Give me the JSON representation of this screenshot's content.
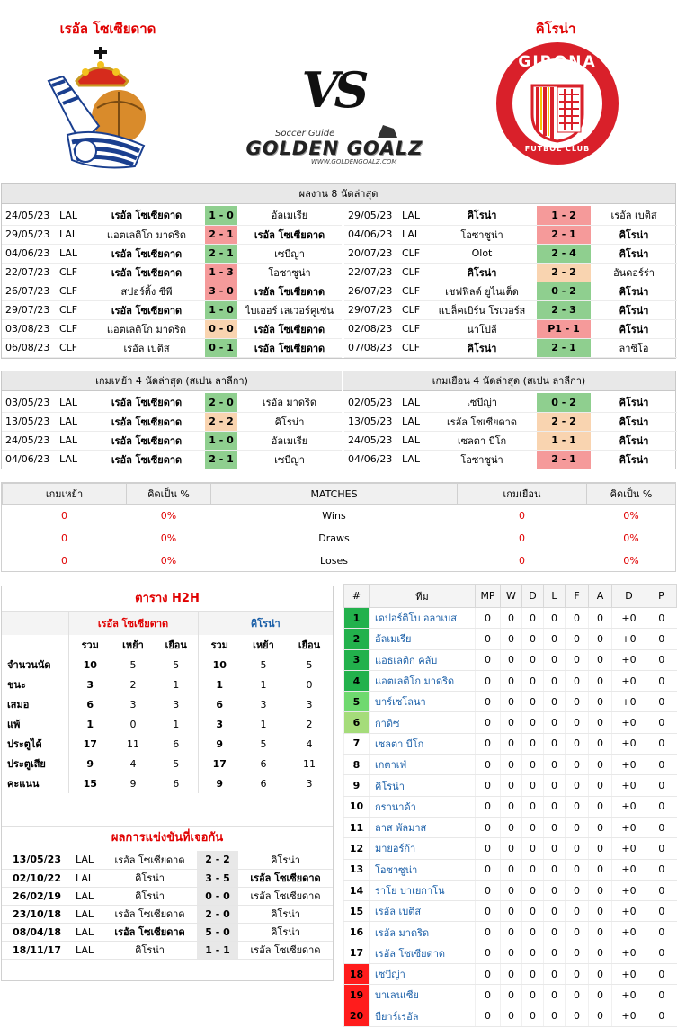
{
  "header": {
    "home_name": "เรอัล โซเซียดาด",
    "away_name": "คิโรน่า",
    "vs": "VS",
    "brand_small": "Soccer Guide",
    "brand_big": "GOLDEN GOALZ",
    "brand_url": "WWW.GOLDENGOALZ.COM",
    "away_logo_top": "GIRONA",
    "away_logo_bottom": "FUTBOL CLUB"
  },
  "recent": {
    "title": "ผลงาน 8 นัดล่าสุด",
    "home": [
      {
        "date": "24/05/23",
        "lg": "LAL",
        "h": "เรอัล โซเซียดาด",
        "hb": true,
        "s": "1 - 0",
        "r": "win",
        "a": "อัลเมเรีย",
        "ab": false
      },
      {
        "date": "29/05/23",
        "lg": "LAL",
        "h": "แอตเลติโก มาดริด",
        "hb": false,
        "s": "2 - 1",
        "r": "loss",
        "a": "เรอัล โซเซียดาด",
        "ab": true
      },
      {
        "date": "04/06/23",
        "lg": "LAL",
        "h": "เรอัล โซเซียดาด",
        "hb": true,
        "s": "2 - 1",
        "r": "win",
        "a": "เซบีญ่า",
        "ab": false
      },
      {
        "date": "22/07/23",
        "lg": "CLF",
        "h": "เรอัล โซเซียดาด",
        "hb": true,
        "s": "1 - 3",
        "r": "loss",
        "a": "โอซาซูน่า",
        "ab": false
      },
      {
        "date": "26/07/23",
        "lg": "CLF",
        "h": "สปอร์ติ้ง ซีพี",
        "hb": false,
        "s": "3 - 0",
        "r": "loss",
        "a": "เรอัล โซเซียดาด",
        "ab": true
      },
      {
        "date": "29/07/23",
        "lg": "CLF",
        "h": "เรอัล โซเซียดาด",
        "hb": true,
        "s": "1 - 0",
        "r": "win",
        "a": "ไบเออร์ เลเวอร์คูเซ่น",
        "ab": false
      },
      {
        "date": "03/08/23",
        "lg": "CLF",
        "h": "แอตเลติโก มาดริด",
        "hb": false,
        "s": "0 - 0",
        "r": "draw",
        "a": "เรอัล โซเซียดาด",
        "ab": true
      },
      {
        "date": "06/08/23",
        "lg": "CLF",
        "h": "เรอัล เบติส",
        "hb": false,
        "s": "0 - 1",
        "r": "win",
        "a": "เรอัล โซเซียดาด",
        "ab": true
      }
    ],
    "away": [
      {
        "date": "29/05/23",
        "lg": "LAL",
        "h": "คิโรน่า",
        "hb": true,
        "s": "1 - 2",
        "r": "loss",
        "a": "เรอัล เบติส",
        "ab": false
      },
      {
        "date": "04/06/23",
        "lg": "LAL",
        "h": "โอซาซูน่า",
        "hb": false,
        "s": "2 - 1",
        "r": "loss",
        "a": "คิโรน่า",
        "ab": true
      },
      {
        "date": "20/07/23",
        "lg": "CLF",
        "h": "Olot",
        "hb": false,
        "s": "2 - 4",
        "r": "win",
        "a": "คิโรน่า",
        "ab": true
      },
      {
        "date": "22/07/23",
        "lg": "CLF",
        "h": "คิโรน่า",
        "hb": true,
        "s": "2 - 2",
        "r": "draw",
        "a": "อันดอร์ร่า",
        "ab": false
      },
      {
        "date": "26/07/23",
        "lg": "CLF",
        "h": "เชฟฟิลด์ ยูไนเต็ด",
        "hb": false,
        "s": "0 - 2",
        "r": "win",
        "a": "คิโรน่า",
        "ab": true
      },
      {
        "date": "29/07/23",
        "lg": "CLF",
        "h": "แบล็คเบิร์น โรเวอร์ส",
        "hb": false,
        "s": "2 - 3",
        "r": "win",
        "a": "คิโรน่า",
        "ab": true
      },
      {
        "date": "02/08/23",
        "lg": "CLF",
        "h": "นาโปลี",
        "hb": false,
        "s": "P1 - 1",
        "r": "loss",
        "a": "คิโรน่า",
        "ab": true
      },
      {
        "date": "07/08/23",
        "lg": "CLF",
        "h": "คิโรน่า",
        "hb": true,
        "s": "2 - 1",
        "r": "win",
        "a": "ลาซิโอ",
        "ab": false
      }
    ]
  },
  "home_away": {
    "home_title": "เกมเหย้า 4 นัดล่าสุด (สเปน ลาลีกา)",
    "away_title": "เกมเยือน 4 นัดล่าสุด (สเปน ลาลีกา)",
    "home": [
      {
        "date": "03/05/23",
        "lg": "LAL",
        "h": "เรอัล โซเซียดาด",
        "hb": true,
        "s": "2 - 0",
        "r": "win",
        "a": "เรอัล มาดริด",
        "ab": false
      },
      {
        "date": "13/05/23",
        "lg": "LAL",
        "h": "เรอัล โซเซียดาด",
        "hb": true,
        "s": "2 - 2",
        "r": "draw",
        "a": "คิโรน่า",
        "ab": false
      },
      {
        "date": "24/05/23",
        "lg": "LAL",
        "h": "เรอัล โซเซียดาด",
        "hb": true,
        "s": "1 - 0",
        "r": "win",
        "a": "อัลเมเรีย",
        "ab": false
      },
      {
        "date": "04/06/23",
        "lg": "LAL",
        "h": "เรอัล โซเซียดาด",
        "hb": true,
        "s": "2 - 1",
        "r": "win",
        "a": "เซบีญ่า",
        "ab": false
      }
    ],
    "away": [
      {
        "date": "02/05/23",
        "lg": "LAL",
        "h": "เซบีญ่า",
        "hb": false,
        "s": "0 - 2",
        "r": "win",
        "a": "คิโรน่า",
        "ab": true
      },
      {
        "date": "13/05/23",
        "lg": "LAL",
        "h": "เรอัล โซเซียดาด",
        "hb": false,
        "s": "2 - 2",
        "r": "draw",
        "a": "คิโรน่า",
        "ab": true
      },
      {
        "date": "24/05/23",
        "lg": "LAL",
        "h": "เซลตา บีโก",
        "hb": false,
        "s": "1 - 1",
        "r": "draw",
        "a": "คิโรน่า",
        "ab": true
      },
      {
        "date": "04/06/23",
        "lg": "LAL",
        "h": "โอซาซูน่า",
        "hb": false,
        "s": "2 - 1",
        "r": "loss",
        "a": "คิโรน่า",
        "ab": true
      }
    ]
  },
  "stats": {
    "headers": [
      "เกมเหย้า",
      "คิดเป็น %",
      "MATCHES",
      "เกมเยือน",
      "คิดเป็น %"
    ],
    "rows": [
      {
        "h": "0",
        "hp": "0%",
        "label": "Wins",
        "a": "0",
        "ap": "0%"
      },
      {
        "h": "0",
        "hp": "0%",
        "label": "Draws",
        "a": "0",
        "ap": "0%"
      },
      {
        "h": "0",
        "hp": "0%",
        "label": "Loses",
        "a": "0",
        "ap": "0%"
      }
    ]
  },
  "h2h": {
    "title": "ตาราง H2H",
    "home": "เรอัล โซเซียดาด",
    "away": "คิโรน่า",
    "cols": [
      "รวม",
      "เหย้า",
      "เยือน",
      "รวม",
      "เหย้า",
      "เยือน"
    ],
    "rows": [
      {
        "label": "จำนวนนัด",
        "v": [
          "10",
          "5",
          "5",
          "10",
          "5",
          "5"
        ]
      },
      {
        "label": "ชนะ",
        "v": [
          "3",
          "2",
          "1",
          "1",
          "1",
          "0"
        ]
      },
      {
        "label": "เสมอ",
        "v": [
          "6",
          "3",
          "3",
          "6",
          "3",
          "3"
        ]
      },
      {
        "label": "แพ้",
        "v": [
          "1",
          "0",
          "1",
          "3",
          "1",
          "2"
        ]
      },
      {
        "label": "ประตูได้",
        "v": [
          "17",
          "11",
          "6",
          "9",
          "5",
          "4"
        ]
      },
      {
        "label": "ประตูเสีย",
        "v": [
          "9",
          "4",
          "5",
          "17",
          "6",
          "11"
        ]
      },
      {
        "label": "คะแนน",
        "v": [
          "15",
          "9",
          "6",
          "9",
          "6",
          "3"
        ]
      }
    ],
    "results_title": "ผลการแข่งขันที่เจอกัน",
    "results": [
      {
        "date": "13/05/23",
        "lg": "LAL",
        "h": "เรอัล โซเซียดาด",
        "hb": false,
        "s": "2 - 2",
        "a": "คิโรน่า",
        "ab": false
      },
      {
        "date": "02/10/22",
        "lg": "LAL",
        "h": "คิโรน่า",
        "hb": false,
        "s": "3 - 5",
        "a": "เรอัล โซเซียดาด",
        "ab": true
      },
      {
        "date": "26/02/19",
        "lg": "LAL",
        "h": "คิโรน่า",
        "hb": false,
        "s": "0 - 0",
        "a": "เรอัล โซเซียดาด",
        "ab": false
      },
      {
        "date": "23/10/18",
        "lg": "LAL",
        "h": "เรอัล โซเซียดาด",
        "hb": false,
        "s": "2 - 0",
        "a": "คิโรน่า",
        "ab": false
      },
      {
        "date": "08/04/18",
        "lg": "LAL",
        "h": "เรอัล โซเซียดาด",
        "hb": true,
        "s": "5 - 0",
        "a": "คิโรน่า",
        "ab": false
      },
      {
        "date": "18/11/17",
        "lg": "LAL",
        "h": "คิโรน่า",
        "hb": false,
        "s": "1 - 1",
        "a": "เรอัล โซเซียดาด",
        "ab": false
      }
    ]
  },
  "league": {
    "cols": [
      "#",
      "ทีม",
      "MP",
      "W",
      "D",
      "L",
      "F",
      "A",
      "D",
      "P"
    ],
    "rows": [
      {
        "pos": "1",
        "team": "เดปอร์ติโบ อลาเบส",
        "zone": "cl"
      },
      {
        "pos": "2",
        "team": "อัลเมเรีย",
        "zone": "cl"
      },
      {
        "pos": "3",
        "team": "แอธเลติก คลับ",
        "zone": "cl"
      },
      {
        "pos": "4",
        "team": "แอตเลติโก มาดริด",
        "zone": "cl"
      },
      {
        "pos": "5",
        "team": "บาร์เซโลนา",
        "zone": "el"
      },
      {
        "pos": "6",
        "team": "กาดิซ",
        "zone": "co"
      },
      {
        "pos": "7",
        "team": "เซลตา บีโก",
        "zone": ""
      },
      {
        "pos": "8",
        "team": "เกตาเฟ่",
        "zone": ""
      },
      {
        "pos": "9",
        "team": "คิโรน่า",
        "zone": ""
      },
      {
        "pos": "10",
        "team": "กรานาด้า",
        "zone": ""
      },
      {
        "pos": "11",
        "team": "ลาส พัลมาส",
        "zone": ""
      },
      {
        "pos": "12",
        "team": "มายอร์ก้า",
        "zone": ""
      },
      {
        "pos": "13",
        "team": "โอซาซูน่า",
        "zone": ""
      },
      {
        "pos": "14",
        "team": "ราโย บาเยกาโน",
        "zone": ""
      },
      {
        "pos": "15",
        "team": "เรอัล เบติส",
        "zone": ""
      },
      {
        "pos": "16",
        "team": "เรอัล มาดริด",
        "zone": ""
      },
      {
        "pos": "17",
        "team": "เรอัล โซเซียดาด",
        "zone": ""
      },
      {
        "pos": "18",
        "team": "เซบีญ่า",
        "zone": "rel"
      },
      {
        "pos": "19",
        "team": "บาเลนเซีย",
        "zone": "rel"
      },
      {
        "pos": "20",
        "team": "บียาร์เรอัล",
        "zone": "rel"
      }
    ],
    "stat_values": {
      "mp": "0",
      "w": "0",
      "d": "0",
      "l": "0",
      "f": "0",
      "a": "0",
      "gd": "+0",
      "p": "0"
    }
  }
}
